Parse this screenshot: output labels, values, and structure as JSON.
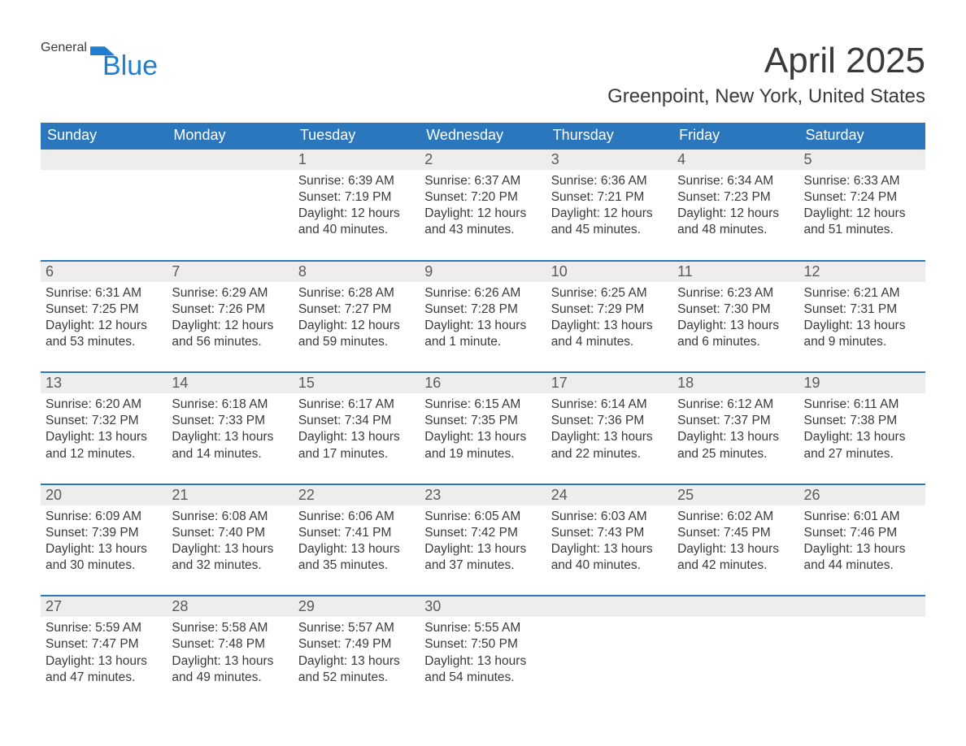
{
  "brand": {
    "name_top": "General",
    "name_bottom": "Blue",
    "accent_color": "#1f7ed0"
  },
  "title": "April 2025",
  "location": "Greenpoint, New York, United States",
  "header_bg": "#2a77bd",
  "daynum_bg": "#ededed",
  "weekdays": [
    "Sunday",
    "Monday",
    "Tuesday",
    "Wednesday",
    "Thursday",
    "Friday",
    "Saturday"
  ],
  "weeks": [
    [
      {
        "num": "",
        "sunrise": "",
        "sunset": "",
        "daylight": ""
      },
      {
        "num": "",
        "sunrise": "",
        "sunset": "",
        "daylight": ""
      },
      {
        "num": "1",
        "sunrise": "Sunrise: 6:39 AM",
        "sunset": "Sunset: 7:19 PM",
        "daylight": "Daylight: 12 hours and 40 minutes."
      },
      {
        "num": "2",
        "sunrise": "Sunrise: 6:37 AM",
        "sunset": "Sunset: 7:20 PM",
        "daylight": "Daylight: 12 hours and 43 minutes."
      },
      {
        "num": "3",
        "sunrise": "Sunrise: 6:36 AM",
        "sunset": "Sunset: 7:21 PM",
        "daylight": "Daylight: 12 hours and 45 minutes."
      },
      {
        "num": "4",
        "sunrise": "Sunrise: 6:34 AM",
        "sunset": "Sunset: 7:23 PM",
        "daylight": "Daylight: 12 hours and 48 minutes."
      },
      {
        "num": "5",
        "sunrise": "Sunrise: 6:33 AM",
        "sunset": "Sunset: 7:24 PM",
        "daylight": "Daylight: 12 hours and 51 minutes."
      }
    ],
    [
      {
        "num": "6",
        "sunrise": "Sunrise: 6:31 AM",
        "sunset": "Sunset: 7:25 PM",
        "daylight": "Daylight: 12 hours and 53 minutes."
      },
      {
        "num": "7",
        "sunrise": "Sunrise: 6:29 AM",
        "sunset": "Sunset: 7:26 PM",
        "daylight": "Daylight: 12 hours and 56 minutes."
      },
      {
        "num": "8",
        "sunrise": "Sunrise: 6:28 AM",
        "sunset": "Sunset: 7:27 PM",
        "daylight": "Daylight: 12 hours and 59 minutes."
      },
      {
        "num": "9",
        "sunrise": "Sunrise: 6:26 AM",
        "sunset": "Sunset: 7:28 PM",
        "daylight": "Daylight: 13 hours and 1 minute."
      },
      {
        "num": "10",
        "sunrise": "Sunrise: 6:25 AM",
        "sunset": "Sunset: 7:29 PM",
        "daylight": "Daylight: 13 hours and 4 minutes."
      },
      {
        "num": "11",
        "sunrise": "Sunrise: 6:23 AM",
        "sunset": "Sunset: 7:30 PM",
        "daylight": "Daylight: 13 hours and 6 minutes."
      },
      {
        "num": "12",
        "sunrise": "Sunrise: 6:21 AM",
        "sunset": "Sunset: 7:31 PM",
        "daylight": "Daylight: 13 hours and 9 minutes."
      }
    ],
    [
      {
        "num": "13",
        "sunrise": "Sunrise: 6:20 AM",
        "sunset": "Sunset: 7:32 PM",
        "daylight": "Daylight: 13 hours and 12 minutes."
      },
      {
        "num": "14",
        "sunrise": "Sunrise: 6:18 AM",
        "sunset": "Sunset: 7:33 PM",
        "daylight": "Daylight: 13 hours and 14 minutes."
      },
      {
        "num": "15",
        "sunrise": "Sunrise: 6:17 AM",
        "sunset": "Sunset: 7:34 PM",
        "daylight": "Daylight: 13 hours and 17 minutes."
      },
      {
        "num": "16",
        "sunrise": "Sunrise: 6:15 AM",
        "sunset": "Sunset: 7:35 PM",
        "daylight": "Daylight: 13 hours and 19 minutes."
      },
      {
        "num": "17",
        "sunrise": "Sunrise: 6:14 AM",
        "sunset": "Sunset: 7:36 PM",
        "daylight": "Daylight: 13 hours and 22 minutes."
      },
      {
        "num": "18",
        "sunrise": "Sunrise: 6:12 AM",
        "sunset": "Sunset: 7:37 PM",
        "daylight": "Daylight: 13 hours and 25 minutes."
      },
      {
        "num": "19",
        "sunrise": "Sunrise: 6:11 AM",
        "sunset": "Sunset: 7:38 PM",
        "daylight": "Daylight: 13 hours and 27 minutes."
      }
    ],
    [
      {
        "num": "20",
        "sunrise": "Sunrise: 6:09 AM",
        "sunset": "Sunset: 7:39 PM",
        "daylight": "Daylight: 13 hours and 30 minutes."
      },
      {
        "num": "21",
        "sunrise": "Sunrise: 6:08 AM",
        "sunset": "Sunset: 7:40 PM",
        "daylight": "Daylight: 13 hours and 32 minutes."
      },
      {
        "num": "22",
        "sunrise": "Sunrise: 6:06 AM",
        "sunset": "Sunset: 7:41 PM",
        "daylight": "Daylight: 13 hours and 35 minutes."
      },
      {
        "num": "23",
        "sunrise": "Sunrise: 6:05 AM",
        "sunset": "Sunset: 7:42 PM",
        "daylight": "Daylight: 13 hours and 37 minutes."
      },
      {
        "num": "24",
        "sunrise": "Sunrise: 6:03 AM",
        "sunset": "Sunset: 7:43 PM",
        "daylight": "Daylight: 13 hours and 40 minutes."
      },
      {
        "num": "25",
        "sunrise": "Sunrise: 6:02 AM",
        "sunset": "Sunset: 7:45 PM",
        "daylight": "Daylight: 13 hours and 42 minutes."
      },
      {
        "num": "26",
        "sunrise": "Sunrise: 6:01 AM",
        "sunset": "Sunset: 7:46 PM",
        "daylight": "Daylight: 13 hours and 44 minutes."
      }
    ],
    [
      {
        "num": "27",
        "sunrise": "Sunrise: 5:59 AM",
        "sunset": "Sunset: 7:47 PM",
        "daylight": "Daylight: 13 hours and 47 minutes."
      },
      {
        "num": "28",
        "sunrise": "Sunrise: 5:58 AM",
        "sunset": "Sunset: 7:48 PM",
        "daylight": "Daylight: 13 hours and 49 minutes."
      },
      {
        "num": "29",
        "sunrise": "Sunrise: 5:57 AM",
        "sunset": "Sunset: 7:49 PM",
        "daylight": "Daylight: 13 hours and 52 minutes."
      },
      {
        "num": "30",
        "sunrise": "Sunrise: 5:55 AM",
        "sunset": "Sunset: 7:50 PM",
        "daylight": "Daylight: 13 hours and 54 minutes."
      },
      {
        "num": "",
        "sunrise": "",
        "sunset": "",
        "daylight": ""
      },
      {
        "num": "",
        "sunrise": "",
        "sunset": "",
        "daylight": ""
      },
      {
        "num": "",
        "sunrise": "",
        "sunset": "",
        "daylight": ""
      }
    ]
  ]
}
